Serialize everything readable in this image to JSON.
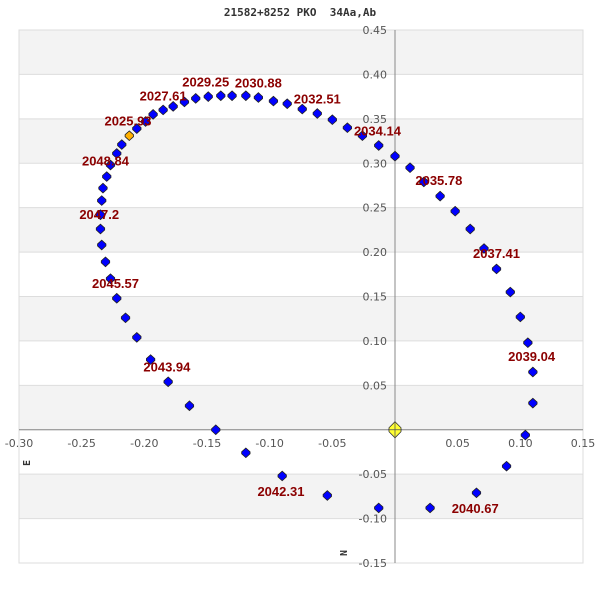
{
  "chart_data": {
    "type": "scatter",
    "title": "21582+8252 PKO  34Aa,Ab",
    "xlabel": "E",
    "ylabel": "N",
    "xlim": [
      -0.3,
      0.15
    ],
    "ylim": [
      -0.15,
      0.45
    ],
    "x_ticks": [
      "-0.30",
      "-0.25",
      "-0.20",
      "-0.15",
      "-0.10",
      "-0.05",
      "0.05",
      "0.10",
      "0.15"
    ],
    "y_ticks": [
      "0.45",
      "0.40",
      "0.35",
      "0.30",
      "0.25",
      "0.20",
      "0.15",
      "0.10",
      "0.05",
      "-0.05",
      "-0.10",
      "-0.15"
    ],
    "grid": "horizontal bands",
    "colors": {
      "orbit_point": "#0000ff",
      "current_point": "#ffb000",
      "primary": "#ffff33",
      "label": "#8b0000",
      "band": "#f3f3f3"
    },
    "primary": {
      "x": 0,
      "y": 0
    },
    "current_point_index": 0,
    "points": [
      [
        -0.212,
        0.331
      ],
      [
        -0.206,
        0.339
      ],
      [
        -0.199,
        0.347
      ],
      [
        -0.193,
        0.355
      ],
      [
        -0.185,
        0.36
      ],
      [
        -0.177,
        0.364
      ],
      [
        -0.168,
        0.369
      ],
      [
        -0.159,
        0.373
      ],
      [
        -0.149,
        0.375
      ],
      [
        -0.139,
        0.376
      ],
      [
        -0.13,
        0.376
      ],
      [
        -0.119,
        0.376
      ],
      [
        -0.109,
        0.374
      ],
      [
        -0.097,
        0.37
      ],
      [
        -0.086,
        0.367
      ],
      [
        -0.074,
        0.361
      ],
      [
        -0.062,
        0.356
      ],
      [
        -0.05,
        0.349
      ],
      [
        -0.038,
        0.34
      ],
      [
        -0.026,
        0.331
      ],
      [
        -0.013,
        0.32
      ],
      [
        0.0,
        0.308
      ],
      [
        0.012,
        0.295
      ],
      [
        0.023,
        0.279
      ],
      [
        0.036,
        0.263
      ],
      [
        0.048,
        0.246
      ],
      [
        0.06,
        0.226
      ],
      [
        0.071,
        0.204
      ],
      [
        0.081,
        0.181
      ],
      [
        0.092,
        0.155
      ],
      [
        0.1,
        0.127
      ],
      [
        0.106,
        0.098
      ],
      [
        0.11,
        0.065
      ],
      [
        0.11,
        0.03
      ],
      [
        0.104,
        -0.006
      ],
      [
        0.089,
        -0.041
      ],
      [
        0.065,
        -0.071
      ],
      [
        0.028,
        -0.088
      ],
      [
        -0.013,
        -0.088
      ],
      [
        -0.054,
        -0.074
      ],
      [
        -0.09,
        -0.052
      ],
      [
        -0.119,
        -0.026
      ],
      [
        -0.143,
        0.0
      ],
      [
        -0.164,
        0.027
      ],
      [
        -0.181,
        0.054
      ],
      [
        -0.195,
        0.079
      ],
      [
        -0.206,
        0.104
      ],
      [
        -0.215,
        0.126
      ],
      [
        -0.222,
        0.148
      ],
      [
        -0.227,
        0.17
      ],
      [
        -0.231,
        0.189
      ],
      [
        -0.234,
        0.208
      ],
      [
        -0.235,
        0.226
      ],
      [
        -0.235,
        0.242
      ],
      [
        -0.234,
        0.258
      ],
      [
        -0.233,
        0.272
      ],
      [
        -0.23,
        0.285
      ],
      [
        -0.227,
        0.298
      ],
      [
        -0.222,
        0.311
      ],
      [
        -0.218,
        0.321
      ]
    ],
    "epoch_labels": [
      {
        "text": "2025.93",
        "x": -0.213,
        "y": 0.348
      },
      {
        "text": "2027.61",
        "x": -0.185,
        "y": 0.376
      },
      {
        "text": "2029.25",
        "x": -0.151,
        "y": 0.392
      },
      {
        "text": "2030.88",
        "x": -0.109,
        "y": 0.391
      },
      {
        "text": "2032.51",
        "x": -0.062,
        "y": 0.373
      },
      {
        "text": "2034.14",
        "x": -0.014,
        "y": 0.337
      },
      {
        "text": "2035.78",
        "x": 0.035,
        "y": 0.281
      },
      {
        "text": "2037.41",
        "x": 0.081,
        "y": 0.199
      },
      {
        "text": "2039.04",
        "x": 0.109,
        "y": 0.083
      },
      {
        "text": "2040.67",
        "x": 0.064,
        "y": -0.088
      },
      {
        "text": "2042.31",
        "x": -0.091,
        "y": -0.069
      },
      {
        "text": "2043.94",
        "x": -0.182,
        "y": 0.071
      },
      {
        "text": "2045.57",
        "x": -0.223,
        "y": 0.165
      },
      {
        "text": "2047.2",
        "x": -0.236,
        "y": 0.243
      },
      {
        "text": "2048.84",
        "x": -0.231,
        "y": 0.303
      }
    ]
  }
}
